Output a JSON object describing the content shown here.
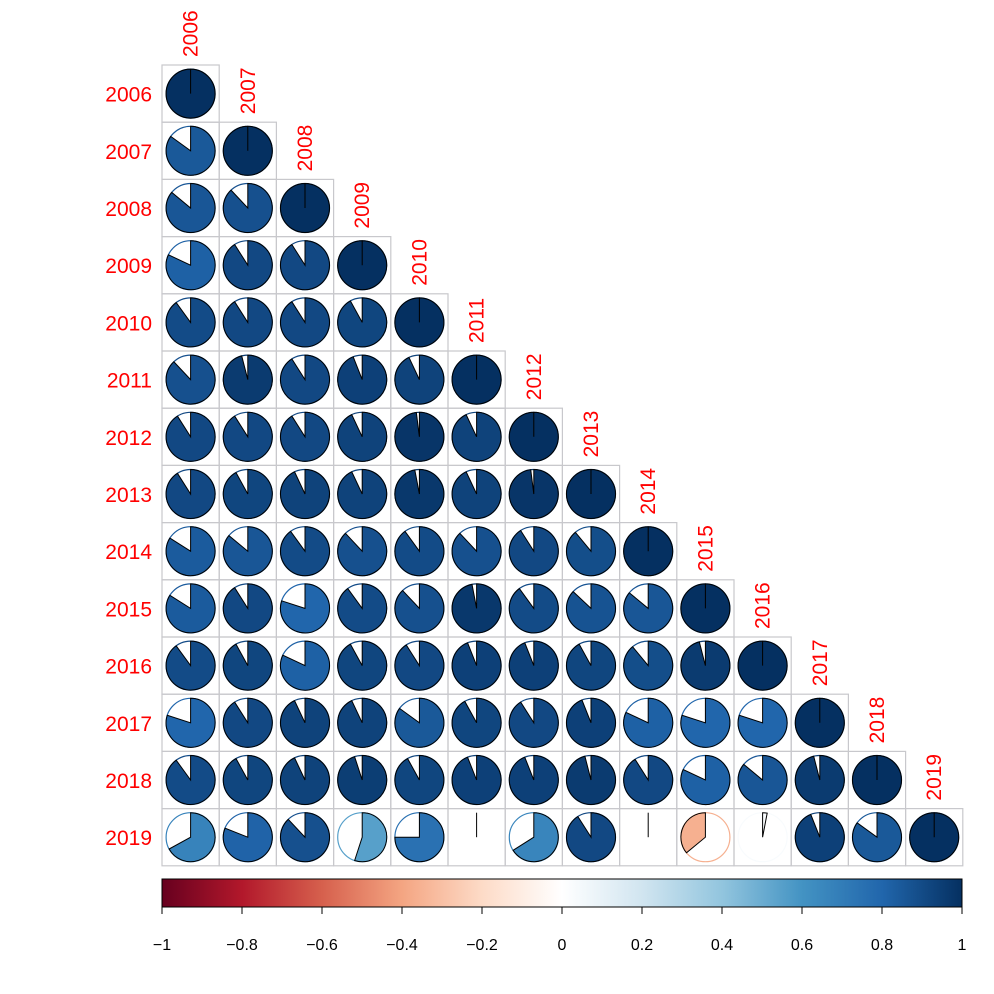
{
  "chart_data": {
    "type": "heatmap",
    "subtype": "correlation-matrix-pie",
    "layout": "lower-triangle",
    "labels": [
      "2006",
      "2007",
      "2008",
      "2009",
      "2010",
      "2011",
      "2012",
      "2013",
      "2014",
      "2015",
      "2016",
      "2017",
      "2018",
      "2019"
    ],
    "matrix": [
      [
        1.0
      ],
      [
        0.85,
        1.0
      ],
      [
        0.86,
        0.88,
        1.0
      ],
      [
        0.82,
        0.91,
        0.91,
        1.0
      ],
      [
        0.9,
        0.91,
        0.91,
        0.92,
        1.0
      ],
      [
        0.88,
        0.96,
        0.91,
        0.94,
        0.93,
        1.0
      ],
      [
        0.91,
        0.91,
        0.91,
        0.93,
        0.98,
        0.93,
        1.0
      ],
      [
        0.91,
        0.92,
        0.93,
        0.93,
        0.97,
        0.93,
        0.98,
        1.0
      ],
      [
        0.84,
        0.86,
        0.9,
        0.88,
        0.9,
        0.88,
        0.91,
        0.89,
        1.0
      ],
      [
        0.84,
        0.91,
        0.8,
        0.9,
        0.88,
        0.97,
        0.9,
        0.87,
        0.86,
        1.0
      ],
      [
        0.9,
        0.92,
        0.82,
        0.92,
        0.91,
        0.94,
        0.94,
        0.92,
        0.89,
        0.96,
        1.0
      ],
      [
        0.8,
        0.91,
        0.93,
        0.93,
        0.85,
        0.92,
        0.91,
        0.94,
        0.82,
        0.8,
        0.8,
        1.0
      ],
      [
        0.9,
        0.92,
        0.93,
        0.95,
        0.92,
        0.94,
        0.94,
        0.96,
        0.91,
        0.82,
        0.86,
        0.96,
        1.0
      ],
      [
        0.67,
        0.81,
        0.88,
        0.55,
        0.75,
        0.0,
        0.66,
        0.91,
        0.0,
        -0.36,
        0.03,
        0.94,
        0.85,
        1.0
      ]
    ],
    "colorbar": {
      "ticks": [
        "−1",
        "−0.8",
        "−0.6",
        "−0.4",
        "−0.2",
        "0",
        "0.2",
        "0.4",
        "0.6",
        "0.8",
        "1"
      ],
      "range": [
        -1,
        1
      ]
    },
    "palette": [
      "#67001F",
      "#B2182B",
      "#D6604D",
      "#F4A582",
      "#FDDBC7",
      "#FFFFFF",
      "#D1E5F0",
      "#92C5DE",
      "#4393C3",
      "#2166AC",
      "#053061"
    ],
    "label_color": "#FF0000",
    "grid_color": "#C8C8CC"
  }
}
